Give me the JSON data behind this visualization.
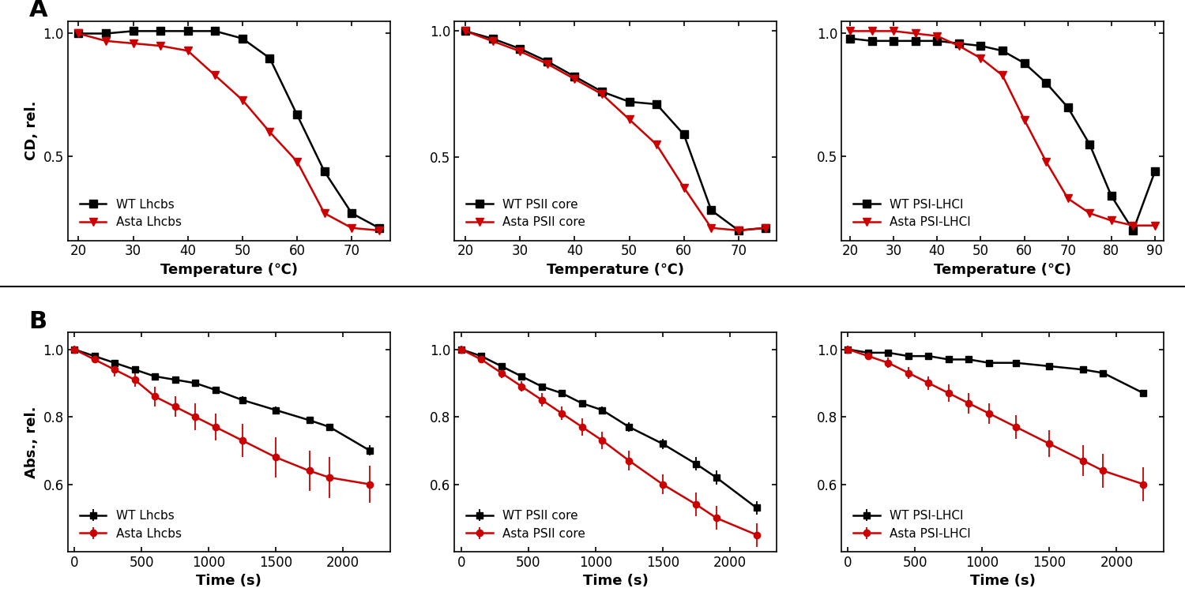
{
  "panel_A": {
    "lhcbs": {
      "wt_x": [
        20,
        25,
        30,
        35,
        40,
        45,
        50,
        55,
        60,
        65,
        70,
        75
      ],
      "wt_y": [
        1.0,
        1.0,
        1.01,
        1.01,
        1.01,
        1.01,
        0.98,
        0.9,
        0.67,
        0.44,
        0.27,
        0.21
      ],
      "asta_x": [
        20,
        25,
        30,
        35,
        40,
        45,
        50,
        55,
        60,
        65,
        70,
        75
      ],
      "asta_y": [
        1.0,
        0.97,
        0.96,
        0.95,
        0.93,
        0.83,
        0.73,
        0.6,
        0.48,
        0.27,
        0.21,
        0.2
      ],
      "xlabel": "Temperature (℃)",
      "ylabel": "CD, rel.",
      "xlim": [
        18,
        77
      ],
      "xticks": [
        20,
        30,
        40,
        50,
        60,
        70
      ],
      "yticks": [
        0.5,
        1.0
      ],
      "wt_label": "WT Lhcbs",
      "asta_label": "Asta Lhcbs"
    },
    "psii": {
      "wt_x": [
        20,
        25,
        30,
        35,
        40,
        45,
        50,
        55,
        60,
        65,
        70,
        75
      ],
      "wt_y": [
        1.0,
        0.97,
        0.93,
        0.88,
        0.82,
        0.76,
        0.72,
        0.71,
        0.59,
        0.29,
        0.21,
        0.22
      ],
      "asta_x": [
        20,
        25,
        30,
        35,
        40,
        45,
        50,
        55,
        60,
        65,
        70,
        75
      ],
      "asta_y": [
        1.0,
        0.96,
        0.92,
        0.87,
        0.81,
        0.75,
        0.65,
        0.55,
        0.38,
        0.22,
        0.21,
        0.22
      ],
      "xlabel": "Temperature (℃)",
      "ylabel": "",
      "xlim": [
        18,
        77
      ],
      "xticks": [
        20,
        30,
        40,
        50,
        60,
        70
      ],
      "yticks": [
        0.5,
        1.0
      ],
      "wt_label": "WT PSII core",
      "asta_label": "Asta PSII core"
    },
    "psilhci": {
      "wt_x": [
        20,
        25,
        30,
        35,
        40,
        45,
        50,
        55,
        60,
        65,
        70,
        75,
        80,
        85,
        90
      ],
      "wt_y": [
        0.98,
        0.97,
        0.97,
        0.97,
        0.97,
        0.96,
        0.95,
        0.93,
        0.88,
        0.8,
        0.7,
        0.55,
        0.34,
        0.2,
        0.44
      ],
      "asta_x": [
        20,
        25,
        30,
        35,
        40,
        45,
        50,
        55,
        60,
        65,
        70,
        75,
        80,
        85,
        90
      ],
      "asta_y": [
        1.01,
        1.01,
        1.01,
        1.0,
        0.99,
        0.95,
        0.9,
        0.83,
        0.65,
        0.48,
        0.33,
        0.27,
        0.24,
        0.22,
        0.22
      ],
      "xlabel": "Temperature (℃)",
      "ylabel": "",
      "xlim": [
        18,
        92
      ],
      "xticks": [
        20,
        30,
        40,
        50,
        60,
        70,
        80,
        90
      ],
      "yticks": [
        0.5,
        1.0
      ],
      "wt_label": "WT PSI-LHCI",
      "asta_label": "Asta PSI-LHCI"
    }
  },
  "panel_B": {
    "lhcbs": {
      "wt_x": [
        0,
        150,
        300,
        450,
        600,
        750,
        900,
        1050,
        1250,
        1500,
        1750,
        1900,
        2200
      ],
      "wt_y": [
        1.0,
        0.98,
        0.96,
        0.94,
        0.92,
        0.91,
        0.9,
        0.88,
        0.85,
        0.82,
        0.79,
        0.77,
        0.7
      ],
      "wt_err": [
        0.005,
        0.005,
        0.006,
        0.007,
        0.007,
        0.007,
        0.008,
        0.009,
        0.01,
        0.01,
        0.01,
        0.01,
        0.015
      ],
      "asta_x": [
        0,
        150,
        300,
        450,
        600,
        750,
        900,
        1050,
        1250,
        1500,
        1750,
        1900,
        2200
      ],
      "asta_y": [
        1.0,
        0.97,
        0.94,
        0.91,
        0.86,
        0.83,
        0.8,
        0.77,
        0.73,
        0.68,
        0.64,
        0.62,
        0.6
      ],
      "asta_err": [
        0.01,
        0.01,
        0.02,
        0.02,
        0.03,
        0.03,
        0.04,
        0.04,
        0.05,
        0.06,
        0.06,
        0.06,
        0.055
      ],
      "xlabel": "Time (s)",
      "ylabel": "Abs., rel.",
      "xlim": [
        -50,
        2350
      ],
      "ylim": [
        0.4,
        1.05
      ],
      "xticks": [
        0,
        500,
        1000,
        1500,
        2000
      ],
      "yticks": [
        0.6,
        0.8,
        1.0
      ],
      "wt_label": "WT Lhcbs",
      "asta_label": "Asta Lhcbs"
    },
    "psii": {
      "wt_x": [
        0,
        150,
        300,
        450,
        600,
        750,
        900,
        1050,
        1250,
        1500,
        1750,
        1900,
        2200
      ],
      "wt_y": [
        1.0,
        0.98,
        0.95,
        0.92,
        0.89,
        0.87,
        0.84,
        0.82,
        0.77,
        0.72,
        0.66,
        0.62,
        0.53
      ],
      "wt_err": [
        0.005,
        0.006,
        0.007,
        0.008,
        0.009,
        0.01,
        0.01,
        0.01,
        0.015,
        0.015,
        0.02,
        0.02,
        0.02
      ],
      "asta_x": [
        0,
        150,
        300,
        450,
        600,
        750,
        900,
        1050,
        1250,
        1500,
        1750,
        1900,
        2200
      ],
      "asta_y": [
        1.0,
        0.97,
        0.93,
        0.89,
        0.85,
        0.81,
        0.77,
        0.73,
        0.67,
        0.6,
        0.54,
        0.5,
        0.45
      ],
      "asta_err": [
        0.01,
        0.01,
        0.015,
        0.015,
        0.02,
        0.02,
        0.025,
        0.025,
        0.03,
        0.03,
        0.035,
        0.035,
        0.035
      ],
      "xlabel": "Time (s)",
      "ylabel": "",
      "xlim": [
        -50,
        2350
      ],
      "ylim": [
        0.4,
        1.05
      ],
      "xticks": [
        0,
        500,
        1000,
        1500,
        2000
      ],
      "yticks": [
        0.6,
        0.8,
        1.0
      ],
      "wt_label": "WT PSII core",
      "asta_label": "Asta PSII core"
    },
    "psilhci": {
      "wt_x": [
        0,
        150,
        300,
        450,
        600,
        750,
        900,
        1050,
        1250,
        1500,
        1750,
        1900,
        2200
      ],
      "wt_y": [
        1.0,
        0.99,
        0.99,
        0.98,
        0.98,
        0.97,
        0.97,
        0.96,
        0.96,
        0.95,
        0.94,
        0.93,
        0.87
      ],
      "wt_err": [
        0.003,
        0.003,
        0.003,
        0.003,
        0.003,
        0.004,
        0.004,
        0.004,
        0.005,
        0.005,
        0.005,
        0.006,
        0.007
      ],
      "asta_x": [
        0,
        150,
        300,
        450,
        600,
        750,
        900,
        1050,
        1250,
        1500,
        1750,
        1900,
        2200
      ],
      "asta_y": [
        1.0,
        0.98,
        0.96,
        0.93,
        0.9,
        0.87,
        0.84,
        0.81,
        0.77,
        0.72,
        0.67,
        0.64,
        0.6
      ],
      "asta_err": [
        0.01,
        0.012,
        0.015,
        0.018,
        0.02,
        0.025,
        0.03,
        0.03,
        0.035,
        0.04,
        0.045,
        0.05,
        0.05
      ],
      "xlabel": "Time (s)",
      "ylabel": "",
      "xlim": [
        -50,
        2350
      ],
      "ylim": [
        0.4,
        1.05
      ],
      "xticks": [
        0,
        500,
        1000,
        1500,
        2000
      ],
      "yticks": [
        0.6,
        0.8,
        1.0
      ],
      "wt_label": "WT PSI-LHCI",
      "asta_label": "Asta PSI-LHCI"
    }
  },
  "wt_color": "#000000",
  "asta_color": "#cc0000",
  "wt_marker_A": "s",
  "asta_marker_A": "v",
  "wt_marker_B": "s",
  "asta_marker_B": "o",
  "linewidth": 1.8,
  "markersize_A": 7,
  "markersize_B": 6,
  "panel_label_fontsize": 22,
  "axis_label_fontsize": 13,
  "tick_label_fontsize": 12,
  "legend_fontsize": 11,
  "background_color": "#ffffff"
}
